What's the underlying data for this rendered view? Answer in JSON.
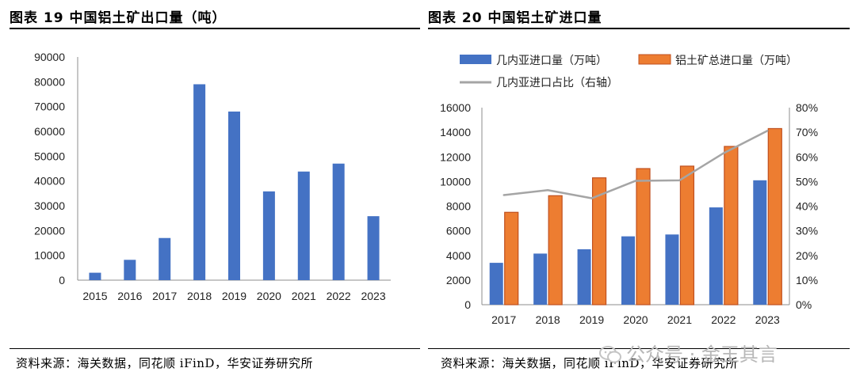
{
  "left": {
    "title": "图表 19  中国铝土矿出口量（吨）",
    "source": "资料来源：海关数据，同花顺 iFinD，华安证券研究所"
  },
  "right": {
    "title": "图表 20 中国铝土矿进口量",
    "source": "资料来源：海关数据，同花顺 iFinD，华安证券研究所"
  },
  "watermark": {
    "text": "公众号 · 金王其言"
  },
  "colors": {
    "blue": "#4472C4",
    "orange": "#ED7D31",
    "orange_edge": "#C0501F",
    "grey_line": "#A5A5A5"
  },
  "chart_data": [
    {
      "type": "bar",
      "title": "中国铝土矿出口量（吨）",
      "categories": [
        "2015",
        "2016",
        "2017",
        "2018",
        "2019",
        "2020",
        "2021",
        "2022",
        "2023"
      ],
      "values": [
        3000,
        8200,
        17000,
        79000,
        68000,
        35800,
        43800,
        47000,
        25800
      ],
      "ylim": [
        0,
        90000
      ],
      "yticks": [
        "0",
        "10000",
        "20000",
        "30000",
        "40000",
        "50000",
        "60000",
        "70000",
        "80000",
        "90000"
      ],
      "xlabel": "",
      "ylabel": "",
      "grid": false
    },
    {
      "type": "bar",
      "title": "中国铝土矿进口量",
      "categories": [
        "2017",
        "2018",
        "2019",
        "2020",
        "2021",
        "2022",
        "2023"
      ],
      "series": [
        {
          "name": "几内亚进口量（万吨）",
          "kind": "bar",
          "axis": "left",
          "values": [
            3400,
            4150,
            4500,
            5550,
            5700,
            7900,
            10100
          ]
        },
        {
          "name": "铝土矿总进口量（万吨）",
          "kind": "bar",
          "axis": "left",
          "values": [
            7500,
            8850,
            10300,
            11050,
            11250,
            12850,
            14300
          ]
        },
        {
          "name": "几内亚进口占比（右轴）",
          "kind": "line",
          "axis": "right",
          "values": [
            44.5,
            46.5,
            43.2,
            50.3,
            50.5,
            61.5,
            70.6
          ]
        }
      ],
      "ylim": [
        0,
        16000
      ],
      "yticks": [
        "0",
        "2000",
        "4000",
        "6000",
        "8000",
        "10000",
        "12000",
        "14000",
        "16000"
      ],
      "y2lim": [
        0,
        80
      ],
      "y2ticks": [
        "0%",
        "10%",
        "20%",
        "30%",
        "40%",
        "50%",
        "60%",
        "70%",
        "80%"
      ],
      "legend": "top",
      "grid": false
    }
  ]
}
